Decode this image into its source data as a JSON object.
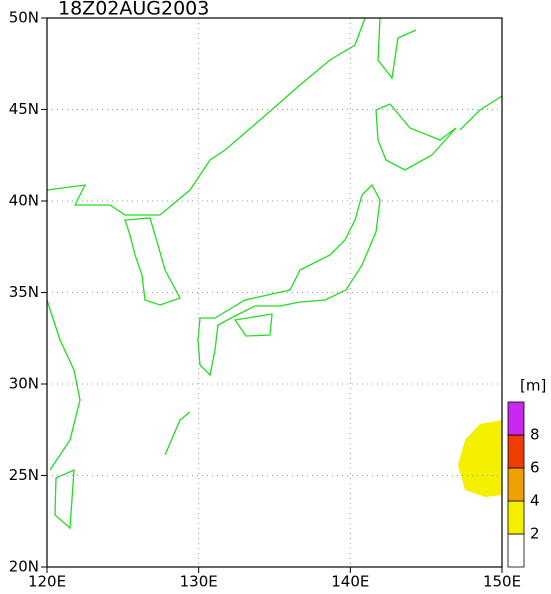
{
  "title": "18Z02AUG2003",
  "map": {
    "xlim": [
      120,
      150
    ],
    "ylim": [
      20,
      50
    ],
    "xticks": [
      {
        "value": 120,
        "label": "120E"
      },
      {
        "value": 130,
        "label": "130E"
      },
      {
        "value": 140,
        "label": "140E"
      },
      {
        "value": 150,
        "label": "150E"
      }
    ],
    "yticks": [
      {
        "value": 20,
        "label": "20N"
      },
      {
        "value": 25,
        "label": "25N"
      },
      {
        "value": 30,
        "label": "30N"
      },
      {
        "value": 35,
        "label": "35N"
      },
      {
        "value": 40,
        "label": "40N"
      },
      {
        "value": 45,
        "label": "45N"
      },
      {
        "value": 50,
        "label": "50N"
      }
    ],
    "grid": true,
    "coast_color": "#22dd22"
  },
  "colorbar": {
    "unit": "[m]",
    "levels": [
      2,
      4,
      6,
      8
    ],
    "colors": [
      "#ffffff",
      "#f5f000",
      "#f0a000",
      "#f03c00",
      "#c828f0"
    ]
  }
}
